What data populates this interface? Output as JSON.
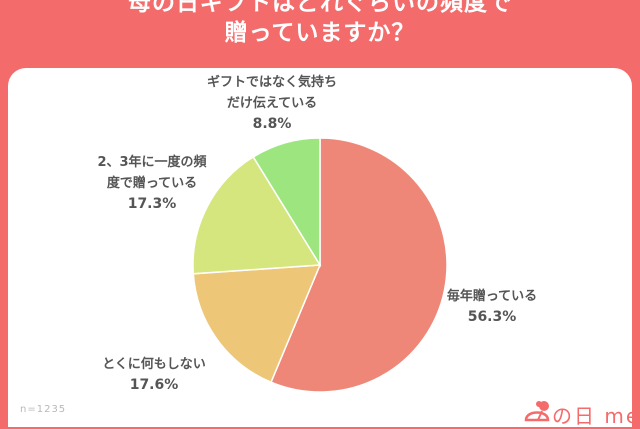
{
  "header": {
    "title_line1": "母の日ギフトはどれぐらいの頻度で",
    "title_line2": "贈っていますか？"
  },
  "note": "n=1235",
  "logo": {
    "text": "の日 me"
  },
  "colors": {
    "background": "#f46b6b",
    "panel": "#ffffff",
    "label": "#555555"
  },
  "chart_data": {
    "type": "pie",
    "start": "top",
    "direction": "clockwise",
    "slices": [
      {
        "label_lines": [
          "毎年贈っている"
        ],
        "value": 56.3,
        "value_label": "56.3%",
        "color": "#ee8778"
      },
      {
        "label_lines": [
          "とくに何もしない"
        ],
        "value": 17.6,
        "value_label": "17.6%",
        "color": "#edc777"
      },
      {
        "label_lines": [
          "2、3年に一度の頻",
          "度で贈っている"
        ],
        "value": 17.3,
        "value_label": "17.3%",
        "color": "#d6e67f"
      },
      {
        "label_lines": [
          "ギフトではなく気持ち",
          "だけ伝えている"
        ],
        "value": 8.8,
        "value_label": "8.8%",
        "color": "#9de67f"
      }
    ]
  }
}
